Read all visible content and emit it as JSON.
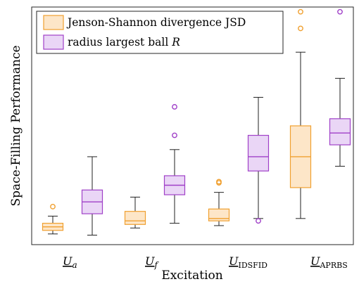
{
  "chart_data": {
    "type": "boxplot",
    "ylabel": "Space-Filling Performance",
    "xlabel": "Excitation",
    "y_ticks_shown": false,
    "ylim": [
      0,
      100
    ],
    "categories": [
      {
        "main": "U",
        "sub": "a",
        "sub_italic": true
      },
      {
        "main": "U",
        "sub": "f",
        "sub_italic": true
      },
      {
        "main": "U",
        "sub": "IDSFID",
        "sub_italic": false
      },
      {
        "main": "U",
        "sub": "APRBS",
        "sub_italic": false
      }
    ],
    "legend": {
      "placement": "top-left",
      "entries": [
        {
          "label": "Jenson-Shannon divergence JSD",
          "symbol": ""
        },
        {
          "label": "radius largest ball ",
          "symbol": "R"
        }
      ]
    },
    "series": [
      {
        "name": "Jenson-Shannon divergence JSD",
        "color": "#f0a030",
        "fill": "#fde6c8",
        "boxes": [
          {
            "whisker_low": 4.5,
            "q1": 6,
            "median": 7.5,
            "q3": 9,
            "whisker_high": 12,
            "outliers": [
              16
            ]
          },
          {
            "whisker_low": 7,
            "q1": 8.5,
            "median": 10,
            "q3": 14,
            "whisker_high": 20,
            "outliers": []
          },
          {
            "whisker_low": 8,
            "q1": 10,
            "median": 11,
            "q3": 15,
            "whisker_high": 22,
            "outliers": [
              26,
              26.5
            ]
          },
          {
            "whisker_low": 11,
            "q1": 24,
            "median": 37,
            "q3": 50,
            "whisker_high": 81,
            "outliers": [
              91,
              98
            ]
          }
        ]
      },
      {
        "name": "radius largest ball R",
        "color": "#a040c8",
        "fill": "#ead6f6",
        "boxes": [
          {
            "whisker_low": 4,
            "q1": 13,
            "median": 18,
            "q3": 23,
            "whisker_high": 37,
            "outliers": []
          },
          {
            "whisker_low": 9,
            "q1": 21,
            "median": 25,
            "q3": 29,
            "whisker_high": 40,
            "outliers": [
              46,
              58
            ]
          },
          {
            "whisker_low": 11,
            "q1": 31,
            "median": 37,
            "q3": 46,
            "whisker_high": 62,
            "outliers": [
              10
            ]
          },
          {
            "whisker_low": 33,
            "q1": 42,
            "median": 47,
            "q3": 53,
            "whisker_high": 70,
            "outliers": [
              98
            ]
          }
        ]
      }
    ]
  }
}
